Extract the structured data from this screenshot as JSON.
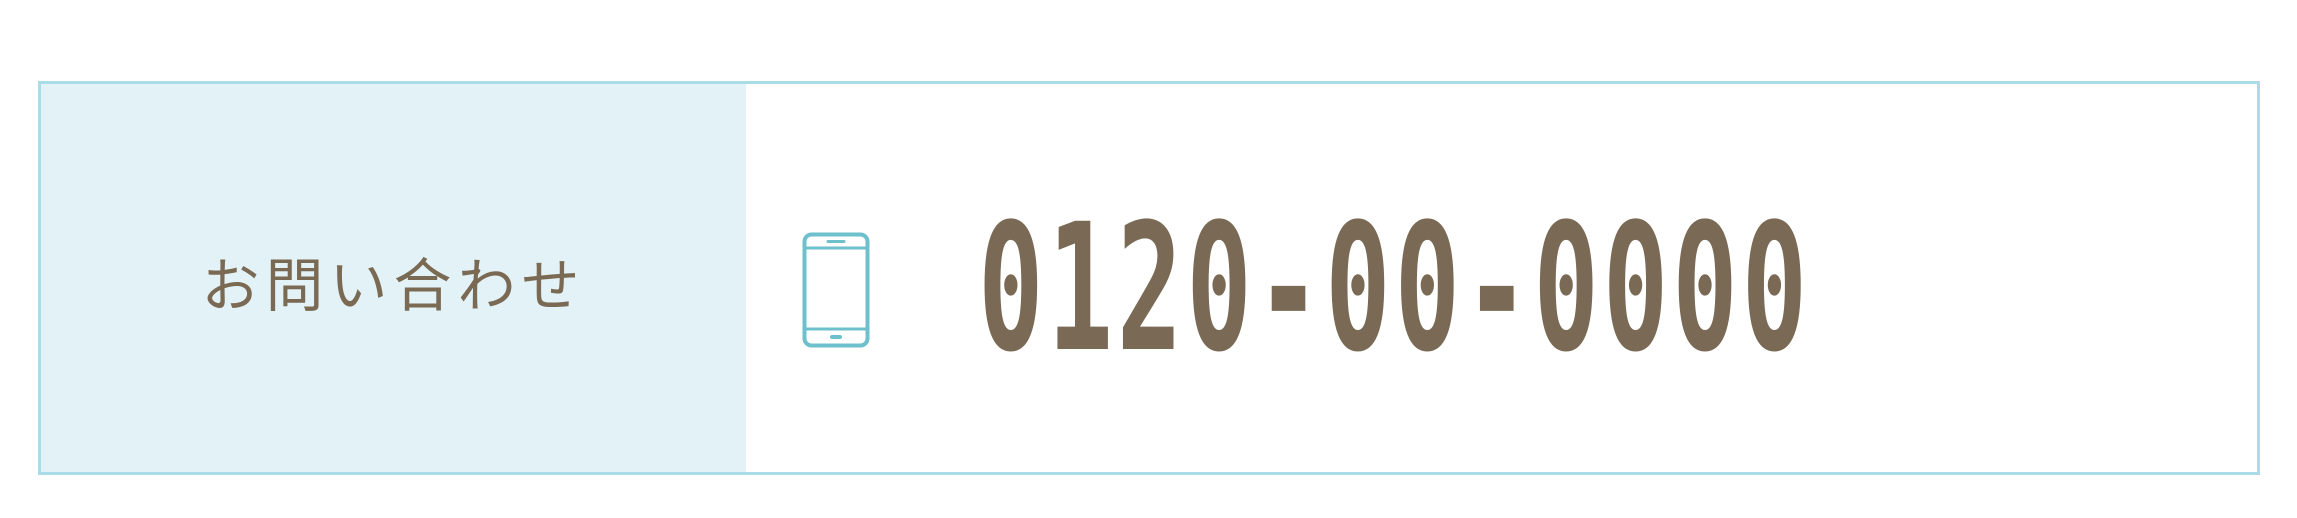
{
  "contact": {
    "label": "お問い合わせ",
    "phone_icon": "smartphone-icon",
    "phone_number": "0120-00-0000"
  },
  "colors": {
    "border": "#a9dce6",
    "label_background": "#e2f2f6",
    "text": "#7a6a55",
    "icon": "#6ec1cc"
  }
}
